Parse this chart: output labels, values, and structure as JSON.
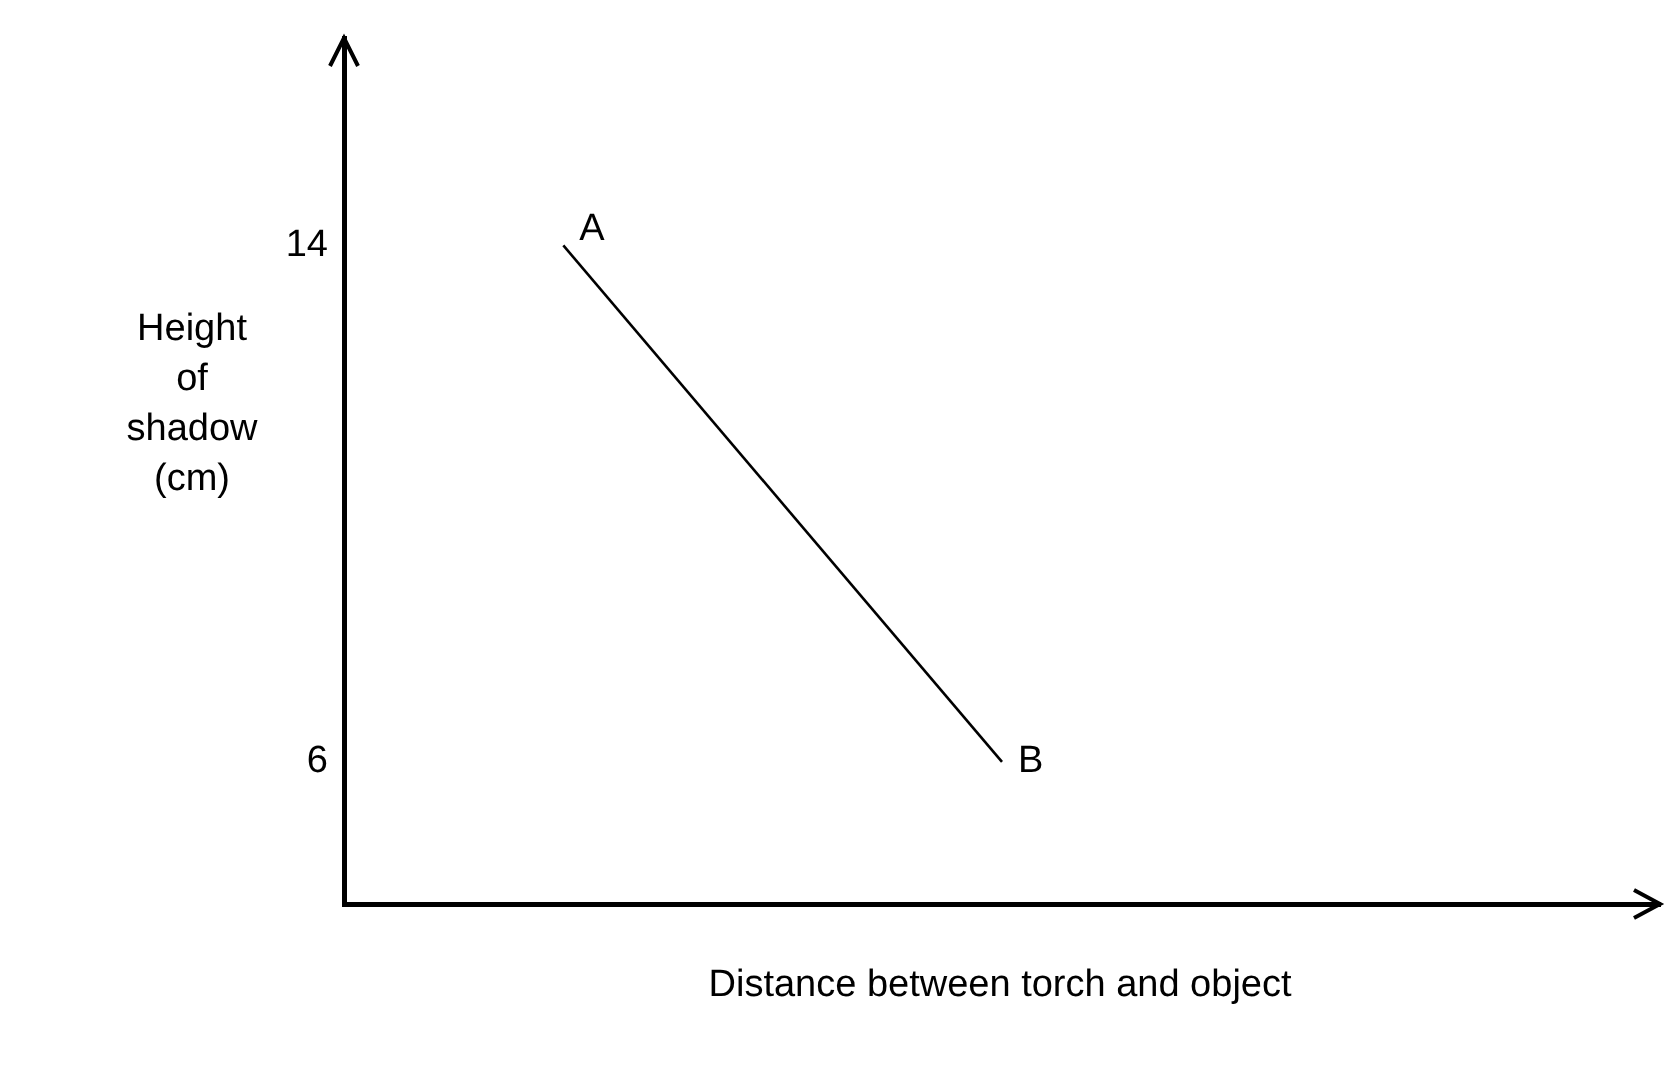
{
  "chart_data": {
    "type": "line",
    "xlabel": "Distance between torch and object",
    "ylabel": "Height of shadow (cm)",
    "categories": [
      null,
      null,
      null
    ],
    "series": [
      {
        "color": "#000000",
        "values": [
          14,
          6,
          null
        ]
      }
    ],
    "ylim": [
      3.8,
      17.2
    ],
    "yticks": [
      14,
      6
    ],
    "tick_labels": "y",
    "grid": false,
    "legend": false,
    "marker": "none",
    "line_style": "solid",
    "annotations": [
      "A",
      "B"
    ]
  }
}
